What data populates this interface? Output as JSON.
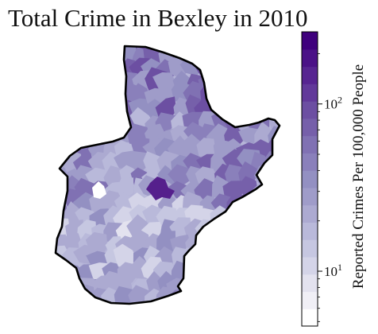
{
  "title": "Total Crime in Bexley in 2010",
  "colorbar": {
    "label": "Reported Crimes Per 100,000 People",
    "scale": "log",
    "range": [
      4.7,
      270
    ],
    "ticks": [
      {
        "value": 10,
        "base": "10",
        "exp": "1"
      },
      {
        "value": 100,
        "base": "10",
        "exp": "2"
      }
    ],
    "colors": [
      "#ffffff",
      "#f0eff6",
      "#e3e2ef",
      "#d4d4e8",
      "#c6c7e1",
      "#b9b9da",
      "#acaad1",
      "#9f9cc9",
      "#9390c2",
      "#8a80bb",
      "#8071b3",
      "#7660aa",
      "#6c4fa2",
      "#62399a",
      "#572591",
      "#4b1287",
      "#3f007d"
    ]
  },
  "map": {
    "region": "Bexley",
    "year": "2010",
    "highlight_color": "#55208c",
    "outline_color": "#000000"
  }
}
